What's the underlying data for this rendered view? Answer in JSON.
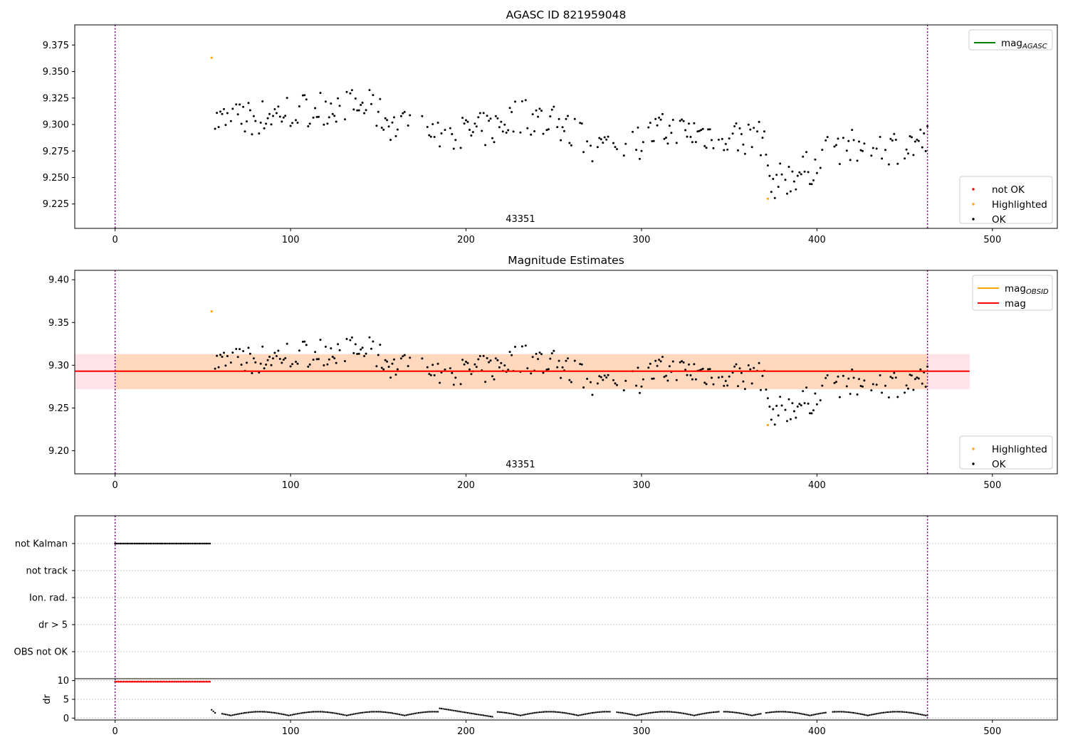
{
  "chart_data": [
    {
      "type": "scatter",
      "title": "AGASC ID 821959048",
      "xlim": [
        -23,
        537
      ],
      "ylim": [
        9.202,
        9.394
      ],
      "yticks": [
        9.225,
        9.25,
        9.275,
        9.3,
        9.325,
        9.35,
        9.375
      ],
      "ytick_labels": [
        "9.225",
        "9.250",
        "9.275",
        "9.300",
        "9.325",
        "9.350",
        "9.375"
      ],
      "xticks": [
        0,
        100,
        200,
        300,
        400,
        500
      ],
      "xtick_labels": [
        "0",
        "100",
        "200",
        "300",
        "400",
        "500"
      ],
      "vlines": [
        0,
        463
      ],
      "annotation": {
        "text": "43351",
        "x": 231
      },
      "legend_top": {
        "placement": "top-right",
        "entries": [
          {
            "label": "mag",
            "sub": "AGASC",
            "color": "#008000"
          }
        ]
      },
      "legend_bottom": {
        "placement": "lower-right",
        "entries": [
          {
            "label": "not OK",
            "color": "#ff0000"
          },
          {
            "label": "Highlighted",
            "color": "#ffa500"
          },
          {
            "label": "OK",
            "color": "#000000"
          }
        ]
      },
      "highlighted": [
        [
          55,
          9.363
        ],
        [
          372,
          9.23
        ]
      ]
    },
    {
      "type": "scatter",
      "title": "Magnitude Estimates",
      "xlim": [
        -23,
        537
      ],
      "ylim": [
        9.173,
        9.411
      ],
      "yticks": [
        9.2,
        9.25,
        9.3,
        9.35,
        9.4
      ],
      "ytick_labels": [
        "9.20",
        "9.25",
        "9.30",
        "9.35",
        "9.40"
      ],
      "xticks": [
        0,
        100,
        200,
        300,
        400,
        500
      ],
      "xtick_labels": [
        "0",
        "100",
        "200",
        "300",
        "400",
        "500"
      ],
      "vlines": [
        0,
        463
      ],
      "mag_line": {
        "value": 9.293,
        "x_range": [
          -23,
          487
        ],
        "color": "#ff0000"
      },
      "mag_band": {
        "low": 9.272,
        "high": 9.313,
        "x_range": [
          -23,
          487
        ],
        "color": "#ffc0cb"
      },
      "obsid_line": {
        "value": 9.293,
        "x_range": [
          0,
          463
        ],
        "color": "#ffa500"
      },
      "obsid_band": {
        "low": 9.272,
        "high": 9.313,
        "x_range": [
          0,
          463
        ],
        "color": "#ffa500"
      },
      "annotation": {
        "text": "43351",
        "x": 231
      },
      "legend_top": {
        "placement": "top-right",
        "entries": [
          {
            "label": "mag",
            "sub": "OBSID",
            "color": "#ffa500"
          },
          {
            "label": "mag",
            "sub": "",
            "color": "#ff0000"
          }
        ]
      },
      "legend_bottom": {
        "placement": "lower-right",
        "entries": [
          {
            "label": "Highlighted",
            "color": "#ffa500"
          },
          {
            "label": "OK",
            "color": "#000000"
          }
        ]
      },
      "highlighted": [
        [
          55,
          9.363
        ],
        [
          372,
          9.23
        ]
      ]
    },
    {
      "type": "scatter",
      "title": "",
      "categories": [
        "not Kalman",
        "not track",
        "Ion. rad.",
        "dr > 5",
        "OBS not OK"
      ],
      "xlim": [
        -23,
        537
      ],
      "vlines": [
        0,
        463
      ],
      "flags": [
        {
          "category": "not Kalman",
          "x_range": [
            0,
            54
          ]
        }
      ]
    },
    {
      "type": "scatter",
      "title": "",
      "ylabel": "dr",
      "xlim": [
        -23,
        537
      ],
      "ylim": [
        -0.5,
        10.5
      ],
      "yticks": [
        0,
        5,
        10
      ],
      "ytick_labels": [
        "0",
        "5",
        "10"
      ],
      "xticks": [
        0,
        100,
        200,
        300,
        400,
        500
      ],
      "xtick_labels": [
        "0",
        "100",
        "200",
        "300",
        "400",
        "500"
      ],
      "vlines": [
        0,
        463
      ],
      "flat_segment": {
        "x_range": [
          0,
          54
        ],
        "value": 9.7,
        "color": "#ff0000"
      }
    }
  ]
}
